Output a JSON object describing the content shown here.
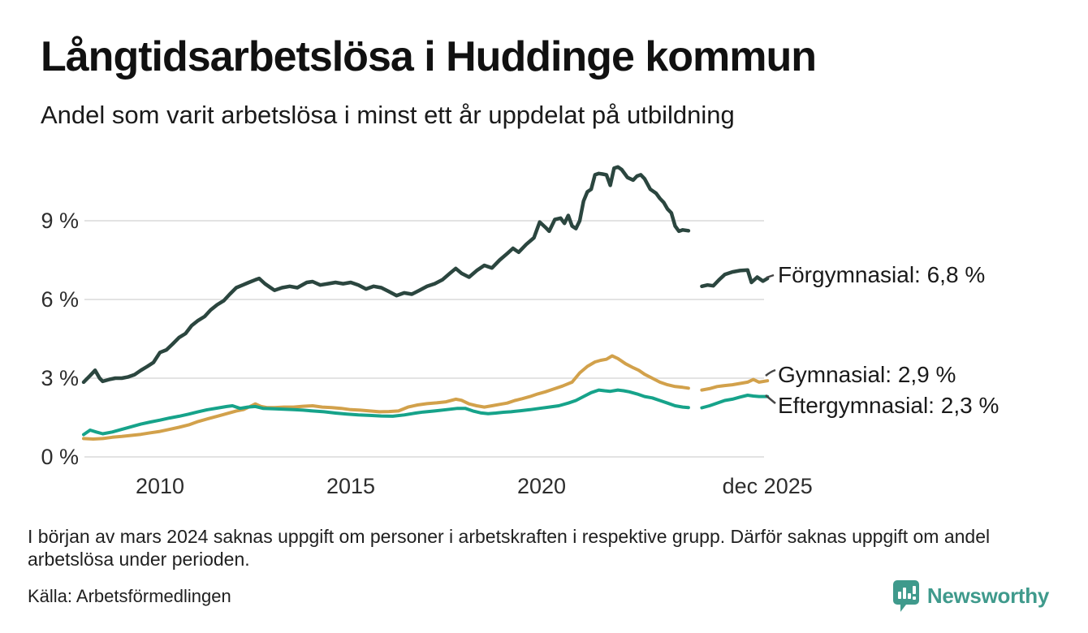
{
  "header": {
    "title": "Långtidsarbetslösa i Huddinge kommun",
    "subtitle": "Andel som varit arbetslösa i minst ett år uppdelat på utbildning"
  },
  "chart_data": {
    "type": "line",
    "title": "Långtidsarbetslösa i Huddinge kommun",
    "subtitle": "Andel som varit arbetslösa i minst ett år uppdelat på utbildning",
    "grid": true,
    "legend_position": "right-annotations",
    "x_range": [
      2008,
      2026.1
    ],
    "ylim": [
      0,
      11.5
    ],
    "gap_note": "data missing early 2024 (gap in all series)",
    "y_axis": {
      "ticks": [
        {
          "label": "0 %",
          "value": 0
        },
        {
          "label": "3 %",
          "value": 3
        },
        {
          "label": "6 %",
          "value": 6
        },
        {
          "label": "9 %",
          "value": 9
        }
      ]
    },
    "x_axis": {
      "ticks": [
        {
          "label": "2010",
          "x": 2010
        },
        {
          "label": "2015",
          "x": 2015
        },
        {
          "label": "2020",
          "x": 2020
        },
        {
          "label": "dec 2025",
          "x": 2025.92
        }
      ]
    },
    "series": [
      {
        "name": "Förgymnasial",
        "label": "Förgymnasial: 6,8 %",
        "last_value": "6,8 %",
        "color": "#2b463f",
        "width": 4.5,
        "points": [
          [
            2008.0,
            2.85
          ],
          [
            2008.17,
            3.1
          ],
          [
            2008.3,
            3.3
          ],
          [
            2008.42,
            3.0
          ],
          [
            2008.5,
            2.88
          ],
          [
            2008.67,
            2.95
          ],
          [
            2008.83,
            3.0
          ],
          [
            2009.0,
            3.0
          ],
          [
            2009.17,
            3.05
          ],
          [
            2009.33,
            3.13
          ],
          [
            2009.5,
            3.3
          ],
          [
            2009.67,
            3.45
          ],
          [
            2009.83,
            3.6
          ],
          [
            2010.0,
            3.98
          ],
          [
            2010.17,
            4.08
          ],
          [
            2010.33,
            4.3
          ],
          [
            2010.5,
            4.55
          ],
          [
            2010.67,
            4.7
          ],
          [
            2010.83,
            5.0
          ],
          [
            2011.0,
            5.2
          ],
          [
            2011.17,
            5.35
          ],
          [
            2011.33,
            5.6
          ],
          [
            2011.5,
            5.8
          ],
          [
            2011.67,
            5.95
          ],
          [
            2011.83,
            6.2
          ],
          [
            2012.0,
            6.45
          ],
          [
            2012.17,
            6.55
          ],
          [
            2012.33,
            6.65
          ],
          [
            2012.5,
            6.75
          ],
          [
            2012.6,
            6.8
          ],
          [
            2012.75,
            6.6
          ],
          [
            2012.9,
            6.45
          ],
          [
            2013.0,
            6.35
          ],
          [
            2013.2,
            6.45
          ],
          [
            2013.4,
            6.5
          ],
          [
            2013.6,
            6.45
          ],
          [
            2013.85,
            6.65
          ],
          [
            2014.0,
            6.68
          ],
          [
            2014.2,
            6.55
          ],
          [
            2014.4,
            6.6
          ],
          [
            2014.6,
            6.65
          ],
          [
            2014.8,
            6.6
          ],
          [
            2015.0,
            6.65
          ],
          [
            2015.2,
            6.55
          ],
          [
            2015.4,
            6.4
          ],
          [
            2015.6,
            6.5
          ],
          [
            2015.8,
            6.45
          ],
          [
            2016.0,
            6.3
          ],
          [
            2016.2,
            6.15
          ],
          [
            2016.4,
            6.25
          ],
          [
            2016.6,
            6.2
          ],
          [
            2016.8,
            6.35
          ],
          [
            2017.0,
            6.5
          ],
          [
            2017.2,
            6.6
          ],
          [
            2017.4,
            6.75
          ],
          [
            2017.6,
            7.0
          ],
          [
            2017.75,
            7.18
          ],
          [
            2017.9,
            7.0
          ],
          [
            2018.1,
            6.85
          ],
          [
            2018.3,
            7.1
          ],
          [
            2018.5,
            7.3
          ],
          [
            2018.7,
            7.2
          ],
          [
            2018.9,
            7.5
          ],
          [
            2019.1,
            7.75
          ],
          [
            2019.25,
            7.95
          ],
          [
            2019.4,
            7.8
          ],
          [
            2019.6,
            8.1
          ],
          [
            2019.8,
            8.35
          ],
          [
            2019.95,
            8.95
          ],
          [
            2020.1,
            8.75
          ],
          [
            2020.2,
            8.6
          ],
          [
            2020.35,
            9.05
          ],
          [
            2020.5,
            9.1
          ],
          [
            2020.6,
            8.9
          ],
          [
            2020.7,
            9.2
          ],
          [
            2020.8,
            8.8
          ],
          [
            2020.9,
            8.7
          ],
          [
            2021.0,
            9.0
          ],
          [
            2021.1,
            9.75
          ],
          [
            2021.2,
            10.1
          ],
          [
            2021.3,
            10.2
          ],
          [
            2021.4,
            10.75
          ],
          [
            2021.5,
            10.8
          ],
          [
            2021.6,
            10.78
          ],
          [
            2021.7,
            10.75
          ],
          [
            2021.8,
            10.35
          ],
          [
            2021.9,
            11.0
          ],
          [
            2022.0,
            11.05
          ],
          [
            2022.1,
            10.95
          ],
          [
            2022.25,
            10.65
          ],
          [
            2022.4,
            10.55
          ],
          [
            2022.5,
            10.7
          ],
          [
            2022.6,
            10.75
          ],
          [
            2022.7,
            10.6
          ],
          [
            2022.85,
            10.2
          ],
          [
            2023.0,
            10.05
          ],
          [
            2023.1,
            9.85
          ],
          [
            2023.2,
            9.7
          ],
          [
            2023.3,
            9.45
          ],
          [
            2023.4,
            9.3
          ],
          [
            2023.5,
            8.8
          ],
          [
            2023.6,
            8.6
          ],
          [
            2023.7,
            8.65
          ],
          [
            2023.85,
            8.62
          ],
          [
            2024.0,
            null
          ],
          [
            2024.2,
            6.5
          ],
          [
            2024.35,
            6.55
          ],
          [
            2024.5,
            6.52
          ],
          [
            2024.65,
            6.75
          ],
          [
            2024.8,
            6.95
          ],
          [
            2025.0,
            7.05
          ],
          [
            2025.2,
            7.1
          ],
          [
            2025.4,
            7.12
          ],
          [
            2025.5,
            6.65
          ],
          [
            2025.65,
            6.85
          ],
          [
            2025.8,
            6.7
          ],
          [
            2025.92,
            6.8
          ]
        ]
      },
      {
        "name": "Gymnasial",
        "label": "Gymnasial: 2,9 %",
        "last_value": "2,9 %",
        "color": "#d2a14b",
        "width": 4,
        "points": [
          [
            2008.0,
            0.7
          ],
          [
            2008.25,
            0.68
          ],
          [
            2008.5,
            0.7
          ],
          [
            2008.75,
            0.75
          ],
          [
            2009.0,
            0.78
          ],
          [
            2009.25,
            0.82
          ],
          [
            2009.5,
            0.86
          ],
          [
            2009.75,
            0.92
          ],
          [
            2010.0,
            0.97
          ],
          [
            2010.25,
            1.05
          ],
          [
            2010.5,
            1.13
          ],
          [
            2010.75,
            1.22
          ],
          [
            2011.0,
            1.35
          ],
          [
            2011.25,
            1.45
          ],
          [
            2011.5,
            1.55
          ],
          [
            2011.75,
            1.65
          ],
          [
            2012.0,
            1.75
          ],
          [
            2012.2,
            1.81
          ],
          [
            2012.4,
            1.95
          ],
          [
            2012.5,
            2.02
          ],
          [
            2012.65,
            1.92
          ],
          [
            2012.8,
            1.88
          ],
          [
            2013.0,
            1.88
          ],
          [
            2013.25,
            1.9
          ],
          [
            2013.5,
            1.9
          ],
          [
            2013.75,
            1.93
          ],
          [
            2014.0,
            1.95
          ],
          [
            2014.25,
            1.9
          ],
          [
            2014.5,
            1.88
          ],
          [
            2014.75,
            1.85
          ],
          [
            2015.0,
            1.8
          ],
          [
            2015.25,
            1.78
          ],
          [
            2015.5,
            1.75
          ],
          [
            2015.75,
            1.72
          ],
          [
            2016.0,
            1.73
          ],
          [
            2016.25,
            1.75
          ],
          [
            2016.5,
            1.9
          ],
          [
            2016.75,
            1.98
          ],
          [
            2017.0,
            2.03
          ],
          [
            2017.25,
            2.06
          ],
          [
            2017.5,
            2.1
          ],
          [
            2017.75,
            2.2
          ],
          [
            2017.9,
            2.16
          ],
          [
            2018.1,
            2.02
          ],
          [
            2018.3,
            1.95
          ],
          [
            2018.5,
            1.9
          ],
          [
            2018.7,
            1.95
          ],
          [
            2018.9,
            2.0
          ],
          [
            2019.1,
            2.05
          ],
          [
            2019.3,
            2.15
          ],
          [
            2019.5,
            2.22
          ],
          [
            2019.7,
            2.3
          ],
          [
            2019.9,
            2.4
          ],
          [
            2020.1,
            2.48
          ],
          [
            2020.3,
            2.58
          ],
          [
            2020.55,
            2.7
          ],
          [
            2020.8,
            2.85
          ],
          [
            2021.0,
            3.2
          ],
          [
            2021.2,
            3.45
          ],
          [
            2021.4,
            3.62
          ],
          [
            2021.55,
            3.68
          ],
          [
            2021.7,
            3.72
          ],
          [
            2021.85,
            3.85
          ],
          [
            2022.0,
            3.75
          ],
          [
            2022.2,
            3.55
          ],
          [
            2022.4,
            3.4
          ],
          [
            2022.55,
            3.3
          ],
          [
            2022.7,
            3.15
          ],
          [
            2022.9,
            3.0
          ],
          [
            2023.1,
            2.85
          ],
          [
            2023.3,
            2.75
          ],
          [
            2023.5,
            2.68
          ],
          [
            2023.7,
            2.65
          ],
          [
            2023.85,
            2.62
          ],
          [
            2024.0,
            null
          ],
          [
            2024.2,
            2.55
          ],
          [
            2024.4,
            2.6
          ],
          [
            2024.6,
            2.68
          ],
          [
            2024.8,
            2.72
          ],
          [
            2025.0,
            2.75
          ],
          [
            2025.2,
            2.8
          ],
          [
            2025.4,
            2.85
          ],
          [
            2025.55,
            2.95
          ],
          [
            2025.7,
            2.85
          ],
          [
            2025.92,
            2.9
          ]
        ]
      },
      {
        "name": "Eftergymnasial",
        "label": "Eftergymnasial: 2,3 %",
        "last_value": "2,3 %",
        "color": "#16a38a",
        "width": 4,
        "points": [
          [
            2008.0,
            0.85
          ],
          [
            2008.17,
            1.02
          ],
          [
            2008.33,
            0.95
          ],
          [
            2008.5,
            0.88
          ],
          [
            2008.75,
            0.95
          ],
          [
            2009.0,
            1.05
          ],
          [
            2009.25,
            1.15
          ],
          [
            2009.5,
            1.25
          ],
          [
            2009.75,
            1.33
          ],
          [
            2010.0,
            1.4
          ],
          [
            2010.25,
            1.48
          ],
          [
            2010.5,
            1.55
          ],
          [
            2010.75,
            1.63
          ],
          [
            2011.0,
            1.72
          ],
          [
            2011.25,
            1.8
          ],
          [
            2011.5,
            1.86
          ],
          [
            2011.75,
            1.92
          ],
          [
            2011.9,
            1.95
          ],
          [
            2012.1,
            1.85
          ],
          [
            2012.3,
            1.9
          ],
          [
            2012.5,
            1.92
          ],
          [
            2012.7,
            1.85
          ],
          [
            2013.0,
            1.83
          ],
          [
            2013.25,
            1.82
          ],
          [
            2013.5,
            1.8
          ],
          [
            2013.75,
            1.78
          ],
          [
            2014.0,
            1.75
          ],
          [
            2014.3,
            1.72
          ],
          [
            2014.6,
            1.67
          ],
          [
            2014.9,
            1.63
          ],
          [
            2015.2,
            1.6
          ],
          [
            2015.5,
            1.58
          ],
          [
            2015.8,
            1.56
          ],
          [
            2016.1,
            1.55
          ],
          [
            2016.4,
            1.6
          ],
          [
            2016.7,
            1.67
          ],
          [
            2016.9,
            1.71
          ],
          [
            2017.2,
            1.75
          ],
          [
            2017.5,
            1.8
          ],
          [
            2017.8,
            1.85
          ],
          [
            2018.0,
            1.85
          ],
          [
            2018.2,
            1.75
          ],
          [
            2018.4,
            1.68
          ],
          [
            2018.6,
            1.65
          ],
          [
            2018.8,
            1.67
          ],
          [
            2019.0,
            1.7
          ],
          [
            2019.2,
            1.72
          ],
          [
            2019.45,
            1.76
          ],
          [
            2019.7,
            1.8
          ],
          [
            2019.95,
            1.85
          ],
          [
            2020.2,
            1.9
          ],
          [
            2020.45,
            1.95
          ],
          [
            2020.7,
            2.05
          ],
          [
            2020.9,
            2.15
          ],
          [
            2021.1,
            2.3
          ],
          [
            2021.3,
            2.45
          ],
          [
            2021.5,
            2.55
          ],
          [
            2021.65,
            2.52
          ],
          [
            2021.8,
            2.5
          ],
          [
            2022.0,
            2.55
          ],
          [
            2022.15,
            2.52
          ],
          [
            2022.3,
            2.48
          ],
          [
            2022.5,
            2.4
          ],
          [
            2022.7,
            2.3
          ],
          [
            2022.9,
            2.25
          ],
          [
            2023.1,
            2.15
          ],
          [
            2023.3,
            2.05
          ],
          [
            2023.5,
            1.95
          ],
          [
            2023.7,
            1.9
          ],
          [
            2023.85,
            1.88
          ],
          [
            2024.0,
            null
          ],
          [
            2024.2,
            1.87
          ],
          [
            2024.4,
            1.95
          ],
          [
            2024.6,
            2.05
          ],
          [
            2024.8,
            2.15
          ],
          [
            2025.0,
            2.2
          ],
          [
            2025.2,
            2.28
          ],
          [
            2025.4,
            2.35
          ],
          [
            2025.55,
            2.32
          ],
          [
            2025.7,
            2.3
          ],
          [
            2025.92,
            2.3
          ]
        ]
      }
    ]
  },
  "footer": {
    "note": "I början av mars 2024 saknas uppgift om personer i arbetskraften i respektive grupp. Därför saknas uppgift om andel arbetslösa under perioden.",
    "source": "Källa: Arbetsförmedlingen"
  },
  "branding": {
    "name": "Newsworthy",
    "color": "#3f9a8c",
    "icon": "bar-chart-speech-bubble-icon"
  }
}
